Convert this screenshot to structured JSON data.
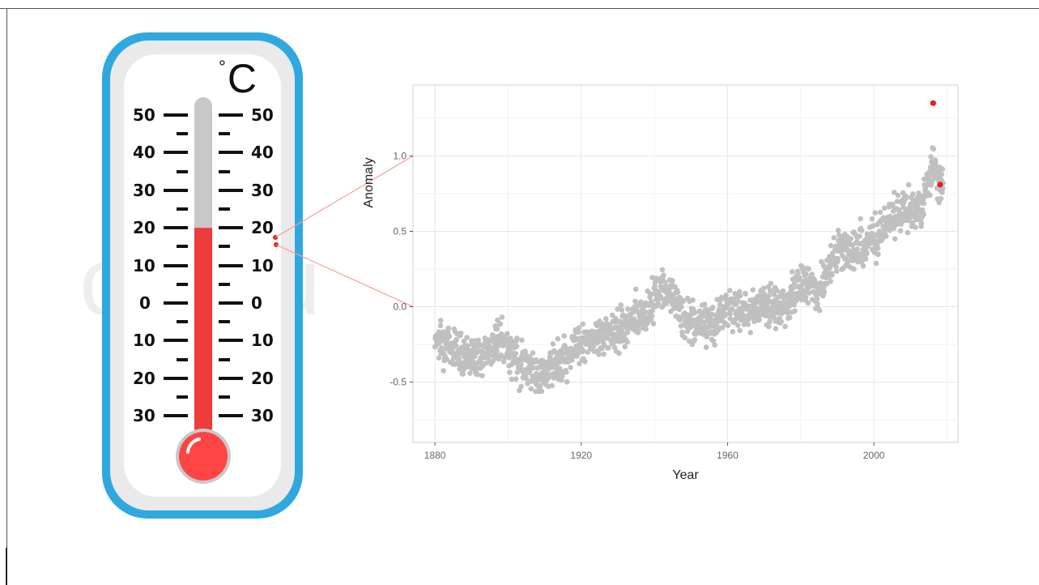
{
  "thermometer": {
    "unit": "C",
    "degree_symbol": "°",
    "scale_labels_left": [
      "50",
      "40",
      "30",
      "20",
      "10",
      "0",
      "10",
      "20",
      "30"
    ],
    "scale_labels_right": [
      "50",
      "40",
      "30",
      "20",
      "10",
      "0",
      "10",
      "20",
      "30"
    ],
    "mercury_level_celsius": 20,
    "colors": {
      "frame": "#2fa8e0",
      "mercury": "#ee3b3b",
      "tube": "#c8c8c8",
      "bulb": "#ff4444"
    }
  },
  "watermark_text": "colou",
  "chart_data": {
    "type": "scatter",
    "title": "",
    "xlabel": "Year",
    "ylabel": "Anomaly",
    "xlim": [
      1874,
      2023
    ],
    "ylim": [
      -0.9,
      1.47
    ],
    "x_ticks": [
      1880,
      1920,
      1960,
      2000
    ],
    "y_ticks": [
      -0.5,
      0.0,
      0.5,
      1.0
    ],
    "x_tick_labels": [
      "1880",
      "1920",
      "1960",
      "2000"
    ],
    "y_tick_labels": [
      "-0.5",
      "0.0",
      "0.5",
      "1.0"
    ],
    "grid": true,
    "point_color": "#c0c0c0",
    "highlight_color": "#ee1c1c",
    "highlight_points": [
      {
        "x": 2016.2,
        "y": 1.35
      },
      {
        "x": 2018.1,
        "y": 0.81
      }
    ],
    "trend_knots": [
      [
        1880,
        -0.2
      ],
      [
        1886,
        -0.29
      ],
      [
        1892,
        -0.33
      ],
      [
        1898,
        -0.22
      ],
      [
        1903,
        -0.36
      ],
      [
        1909,
        -0.46
      ],
      [
        1913,
        -0.38
      ],
      [
        1918,
        -0.27
      ],
      [
        1924,
        -0.22
      ],
      [
        1930,
        -0.15
      ],
      [
        1937,
        -0.06
      ],
      [
        1941,
        0.1
      ],
      [
        1944,
        0.12
      ],
      [
        1947,
        -0.04
      ],
      [
        1951,
        -0.12
      ],
      [
        1956,
        -0.1
      ],
      [
        1960,
        0.0
      ],
      [
        1965,
        -0.03
      ],
      [
        1970,
        0.02
      ],
      [
        1975,
        -0.02
      ],
      [
        1980,
        0.17
      ],
      [
        1985,
        0.12
      ],
      [
        1990,
        0.37
      ],
      [
        1995,
        0.38
      ],
      [
        2000,
        0.44
      ],
      [
        2005,
        0.6
      ],
      [
        2010,
        0.65
      ],
      [
        2013,
        0.62
      ],
      [
        2016,
        0.92
      ],
      [
        2018,
        0.82
      ]
    ],
    "noise_sd": 0.11,
    "n_points_per_year": 12
  }
}
